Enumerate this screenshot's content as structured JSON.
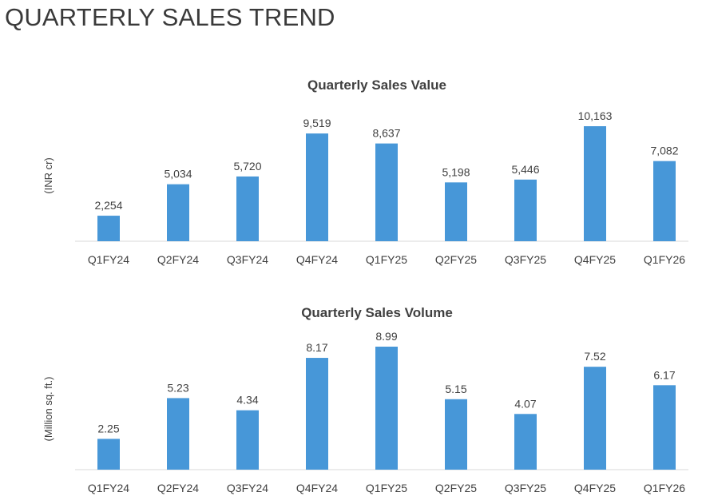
{
  "page": {
    "title": "QUARTERLY SALES TREND"
  },
  "colors": {
    "bar": "#4797d8",
    "text": "#404040",
    "axis": "#d9d9d9"
  },
  "chart_data": [
    {
      "type": "bar",
      "title": "Quarterly Sales Value",
      "xlabel": "",
      "ylabel": "(INR cr)",
      "categories": [
        "Q1FY24",
        "Q2FY24",
        "Q3FY24",
        "Q4FY24",
        "Q1FY25",
        "Q2FY25",
        "Q3FY25",
        "Q4FY25",
        "Q1FY26"
      ],
      "values": [
        2254,
        5034,
        5720,
        9519,
        8637,
        5198,
        5446,
        10163,
        7082
      ],
      "value_labels": [
        "2,254",
        "5,034",
        "5,720",
        "9,519",
        "8,637",
        "5,198",
        "5,446",
        "10,163",
        "7,082"
      ],
      "ylim": [
        0,
        10163
      ],
      "grid": false,
      "legend": "none"
    },
    {
      "type": "bar",
      "title": "Quarterly Sales Volume",
      "xlabel": "",
      "ylabel": "(Million sq. ft.)",
      "categories": [
        "Q1FY24",
        "Q2FY24",
        "Q3FY24",
        "Q4FY24",
        "Q1FY25",
        "Q2FY25",
        "Q3FY25",
        "Q4FY25",
        "Q1FY26"
      ],
      "values": [
        2.25,
        5.23,
        4.34,
        8.17,
        8.99,
        5.15,
        4.07,
        7.52,
        6.17
      ],
      "value_labels": [
        "2.25",
        "5.23",
        "4.34",
        "8.17",
        "8.99",
        "5.15",
        "4.07",
        "7.52",
        "6.17"
      ],
      "ylim": [
        0,
        8.99
      ],
      "grid": false,
      "legend": "none"
    }
  ]
}
